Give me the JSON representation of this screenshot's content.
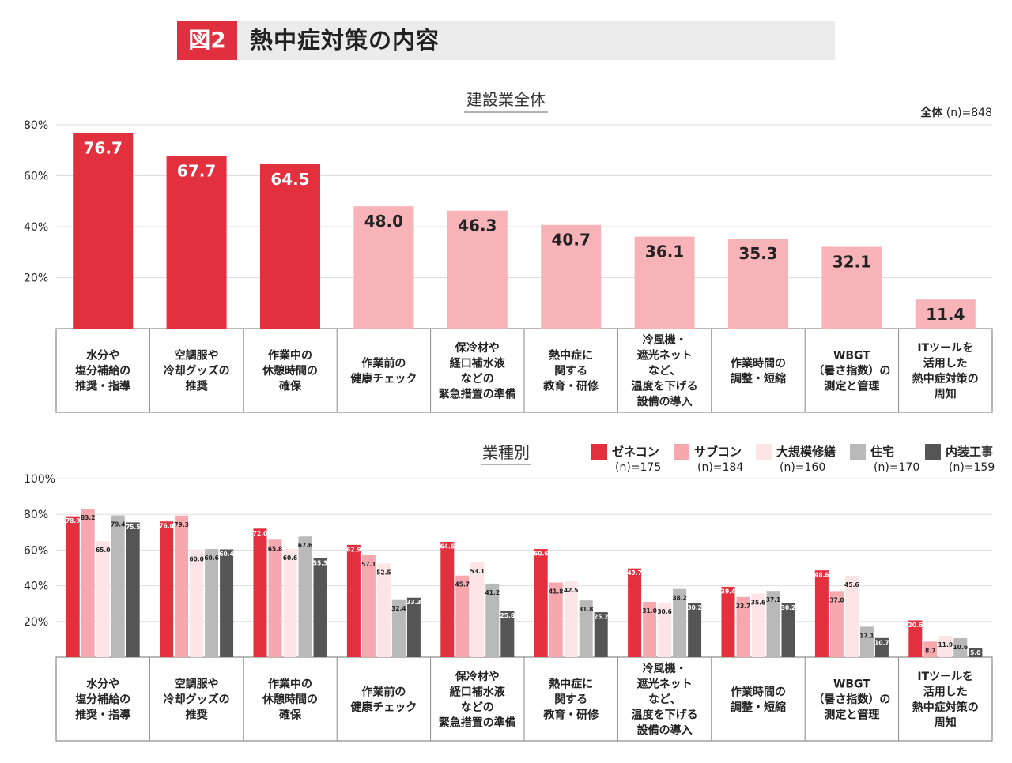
{
  "header": {
    "badge": "図2",
    "title": "熱中症対策の内容"
  },
  "colors": {
    "strong": "#e3303e",
    "light": "#f7b3b8",
    "zenecon": "#e3303e",
    "subcon": "#f6a8ae",
    "renovation": "#fde4e6",
    "housing": "#b9b9b9",
    "interior": "#555555",
    "grid": "#dddddd",
    "frame": "#888888"
  },
  "categories": [
    [
      "水分や",
      "塩分補給の",
      "推奨・指導"
    ],
    [
      "空調服や",
      "冷却グッズの",
      "推奨"
    ],
    [
      "作業中の",
      "休憩時間の",
      "確保"
    ],
    [
      "作業前の",
      "健康チェック"
    ],
    [
      "保冷材や",
      "経口補水液",
      "などの",
      "緊急措置の準備"
    ],
    [
      "熱中症に",
      "関する",
      "教育・研修"
    ],
    [
      "冷風機・",
      "遮光ネット",
      "など、",
      "温度を下げる",
      "設備の導入"
    ],
    [
      "作業時間の",
      "調整・短縮"
    ],
    [
      "WBGT",
      "（暑さ指数）の",
      "測定と管理"
    ],
    [
      "ITツールを",
      "活用した",
      "熱中症対策の",
      "周知"
    ]
  ],
  "chart_data": [
    {
      "type": "bar",
      "title": "建設業全体",
      "note_bold": "全体",
      "note": " (n)=848",
      "yticks": [
        "20%",
        "40%",
        "60%",
        "80%"
      ],
      "ylim": [
        0,
        80
      ],
      "highlight_count": 3,
      "values": [
        76.7,
        67.7,
        64.5,
        48.0,
        46.3,
        40.7,
        36.1,
        35.3,
        32.1,
        11.4
      ],
      "labels": [
        "76.7",
        "67.7",
        "64.5",
        "48.0",
        "46.3",
        "40.7",
        "36.1",
        "35.3",
        "32.1",
        "11.4"
      ]
    },
    {
      "type": "bar",
      "title": "業種別",
      "yticks": [
        "20%",
        "40%",
        "60%",
        "80%",
        "100%"
      ],
      "ylim": [
        0,
        100
      ],
      "series": [
        {
          "name": "ゼネコン",
          "n": "(n)=175",
          "color_key": "zenecon",
          "values": [
            78.9,
            76.0,
            72.0,
            62.9,
            64.6,
            60.6,
            49.7,
            39.4,
            48.6,
            20.6
          ],
          "labels": [
            "78.9",
            "76.0",
            "72.0",
            "62.9",
            "64.6",
            "60.6",
            "49.7",
            "39.4",
            "48.6",
            "20.6"
          ]
        },
        {
          "name": "サブコン",
          "n": "(n)=184",
          "color_key": "subcon",
          "values": [
            83.2,
            79.3,
            65.8,
            57.1,
            45.7,
            41.8,
            31.0,
            33.7,
            37.0,
            8.7
          ],
          "labels": [
            "83.2",
            "79.3",
            "65.8",
            "57.1",
            "45.7",
            "41.8",
            "31.0",
            "33.7",
            "37.0",
            "8.7"
          ]
        },
        {
          "name": "大規模修繕",
          "n": "(n)=160",
          "color_key": "renovation",
          "values": [
            65.0,
            60.0,
            60.6,
            52.5,
            53.1,
            42.5,
            30.6,
            35.6,
            45.6,
            11.9
          ],
          "labels": [
            "65.0",
            "60.0",
            "60.6",
            "52.5",
            "53.1",
            "42.5",
            "30.6",
            "35.6",
            "45.6",
            "11.9"
          ]
        },
        {
          "name": "住宅",
          "n": "(n)=170",
          "color_key": "housing",
          "values": [
            79.4,
            60.6,
            67.6,
            32.4,
            41.2,
            31.8,
            38.2,
            37.1,
            17.1,
            10.6
          ],
          "labels": [
            "79.4",
            "60.6",
            "67.6",
            "32.4",
            "41.2",
            "31.8",
            "38.2",
            "37.1",
            "17.1",
            "10.6"
          ]
        },
        {
          "name": "内装工事",
          "n": "(n)=159",
          "color_key": "interior",
          "values": [
            75.5,
            60.4,
            55.3,
            33.3,
            25.8,
            25.2,
            30.2,
            30.2,
            10.7,
            5.0
          ],
          "labels": [
            "75.5",
            "60.4",
            "55.3",
            "33.3",
            "25.8",
            "25.2",
            "30.2",
            "30.2",
            "10.7",
            "5.0"
          ]
        }
      ]
    }
  ]
}
